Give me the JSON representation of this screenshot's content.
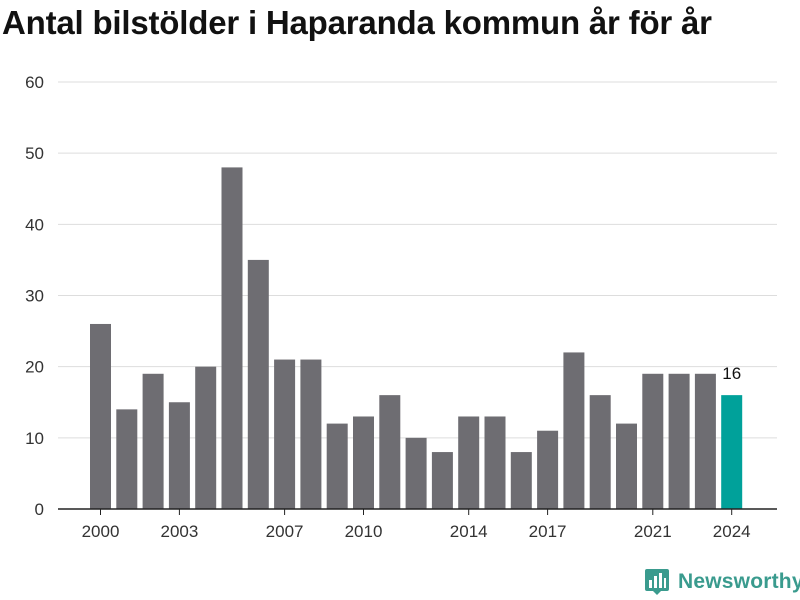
{
  "chart_data": {
    "type": "bar",
    "title": "Antal bilstölder i Haparanda kommun år för år",
    "categories": [
      "2000",
      "2001",
      "2002",
      "2003",
      "2004",
      "2005",
      "2006",
      "2007",
      "2008",
      "2009",
      "2010",
      "2011",
      "2012",
      "2013",
      "2014",
      "2015",
      "2016",
      "2017",
      "2018",
      "2019",
      "2020",
      "2021",
      "2022",
      "2023",
      "2024"
    ],
    "values": [
      26,
      14,
      19,
      15,
      20,
      48,
      35,
      21,
      21,
      12,
      13,
      16,
      10,
      8,
      13,
      13,
      8,
      11,
      22,
      16,
      12,
      19,
      19,
      19,
      16
    ],
    "x_tick_labels": [
      "2000",
      "2003",
      "2007",
      "2010",
      "2014",
      "2017",
      "2021",
      "2024"
    ],
    "y_ticks": [
      0,
      10,
      20,
      30,
      40,
      50,
      60
    ],
    "ylim": [
      0,
      60
    ],
    "grid": true,
    "xlabel": "",
    "ylabel": "",
    "highlight": {
      "category": "2024",
      "label": "16"
    },
    "colors": {
      "bar": "#6e6d72",
      "highlight": "#00a19a",
      "grid": "#dddddd",
      "axis": "#222222"
    }
  },
  "branding": {
    "logo_text": "Newsworthy",
    "logo_color": "#3a9b8e"
  }
}
